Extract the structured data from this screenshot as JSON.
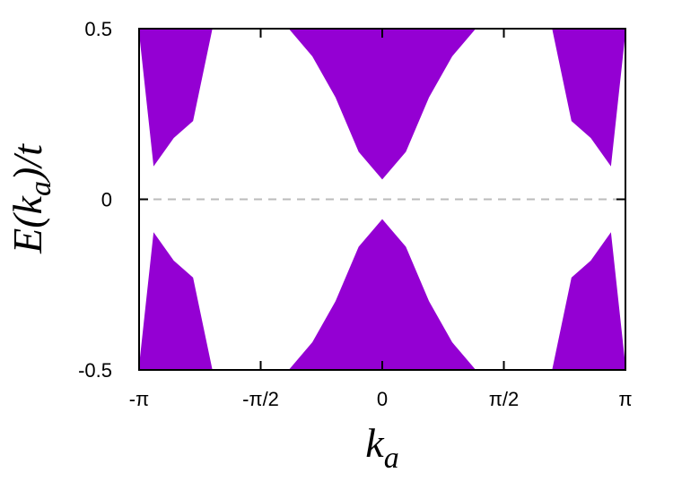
{
  "chart_data": {
    "type": "area",
    "title": "",
    "xlabel": "k_a",
    "ylabel": "E(k_a)/t",
    "xlim": [
      -3.14159,
      3.14159
    ],
    "ylim": [
      -0.5,
      0.5
    ],
    "x_ticks": [
      {
        "value": -3.14159,
        "label": "-π"
      },
      {
        "value": -1.5708,
        "label": "-π/2"
      },
      {
        "value": 0,
        "label": "0"
      },
      {
        "value": 1.5708,
        "label": "π/2"
      },
      {
        "value": 3.14159,
        "label": "π"
      }
    ],
    "y_ticks": [
      {
        "value": -0.5,
        "label": "-0.5"
      },
      {
        "value": 0,
        "label": "0"
      },
      {
        "value": 0.5,
        "label": "0.5"
      }
    ],
    "reference_line": {
      "y": 0,
      "style": "dashed",
      "color": "#bbbbbb"
    },
    "band_color": "#9400d3",
    "series": [
      {
        "x": [
          -3.1416,
          -2.95,
          -2.7,
          -2.45,
          -2.2,
          -1.9,
          -1.7,
          -1.5,
          -1.2,
          -0.9,
          -0.6,
          -0.3,
          0,
          0.3,
          0.6,
          0.9,
          1.2,
          1.5,
          1.7,
          1.9,
          2.2,
          2.45,
          2.7,
          2.95,
          3.1416
        ],
        "upper": [
          0.5,
          0.5,
          0.5,
          0.5,
          0.5,
          0.5,
          0.5,
          0.5,
          0.5,
          0.5,
          0.5,
          0.5,
          0.5,
          0.5,
          0.5,
          0.5,
          0.5,
          0.5,
          0.5,
          0.5,
          0.5,
          0.5,
          0.5,
          0.5,
          0.5
        ],
        "lower": [
          0.5,
          0.1,
          0.18,
          0.23,
          0.5,
          0.5,
          0.5,
          0.5,
          0.5,
          0.42,
          0.3,
          0.14,
          0.06,
          0.14,
          0.3,
          0.42,
          0.5,
          0.5,
          0.5,
          0.5,
          0.5,
          0.23,
          0.18,
          0.1,
          0.5
        ]
      },
      {
        "x": [
          -3.1416,
          -2.95,
          -2.7,
          -2.45,
          -2.2,
          -1.9,
          -1.7,
          -1.5,
          -1.2,
          -0.9,
          -0.6,
          -0.3,
          0,
          0.3,
          0.6,
          0.9,
          1.2,
          1.5,
          1.7,
          1.9,
          2.2,
          2.45,
          2.7,
          2.95,
          3.1416
        ],
        "upper": [
          -0.5,
          -0.1,
          -0.18,
          -0.23,
          -0.5,
          -0.5,
          -0.5,
          -0.5,
          -0.5,
          -0.42,
          -0.3,
          -0.14,
          -0.06,
          -0.14,
          -0.3,
          -0.42,
          -0.5,
          -0.5,
          -0.5,
          -0.5,
          -0.5,
          -0.23,
          -0.18,
          -0.1,
          -0.5
        ],
        "lower": [
          -0.5,
          -0.5,
          -0.5,
          -0.5,
          -0.5,
          -0.5,
          -0.5,
          -0.5,
          -0.5,
          -0.5,
          -0.5,
          -0.5,
          -0.5,
          -0.5,
          -0.5,
          -0.5,
          -0.5,
          -0.5,
          -0.5,
          -0.5,
          -0.5,
          -0.5,
          -0.5,
          -0.5,
          -0.5
        ]
      }
    ]
  }
}
